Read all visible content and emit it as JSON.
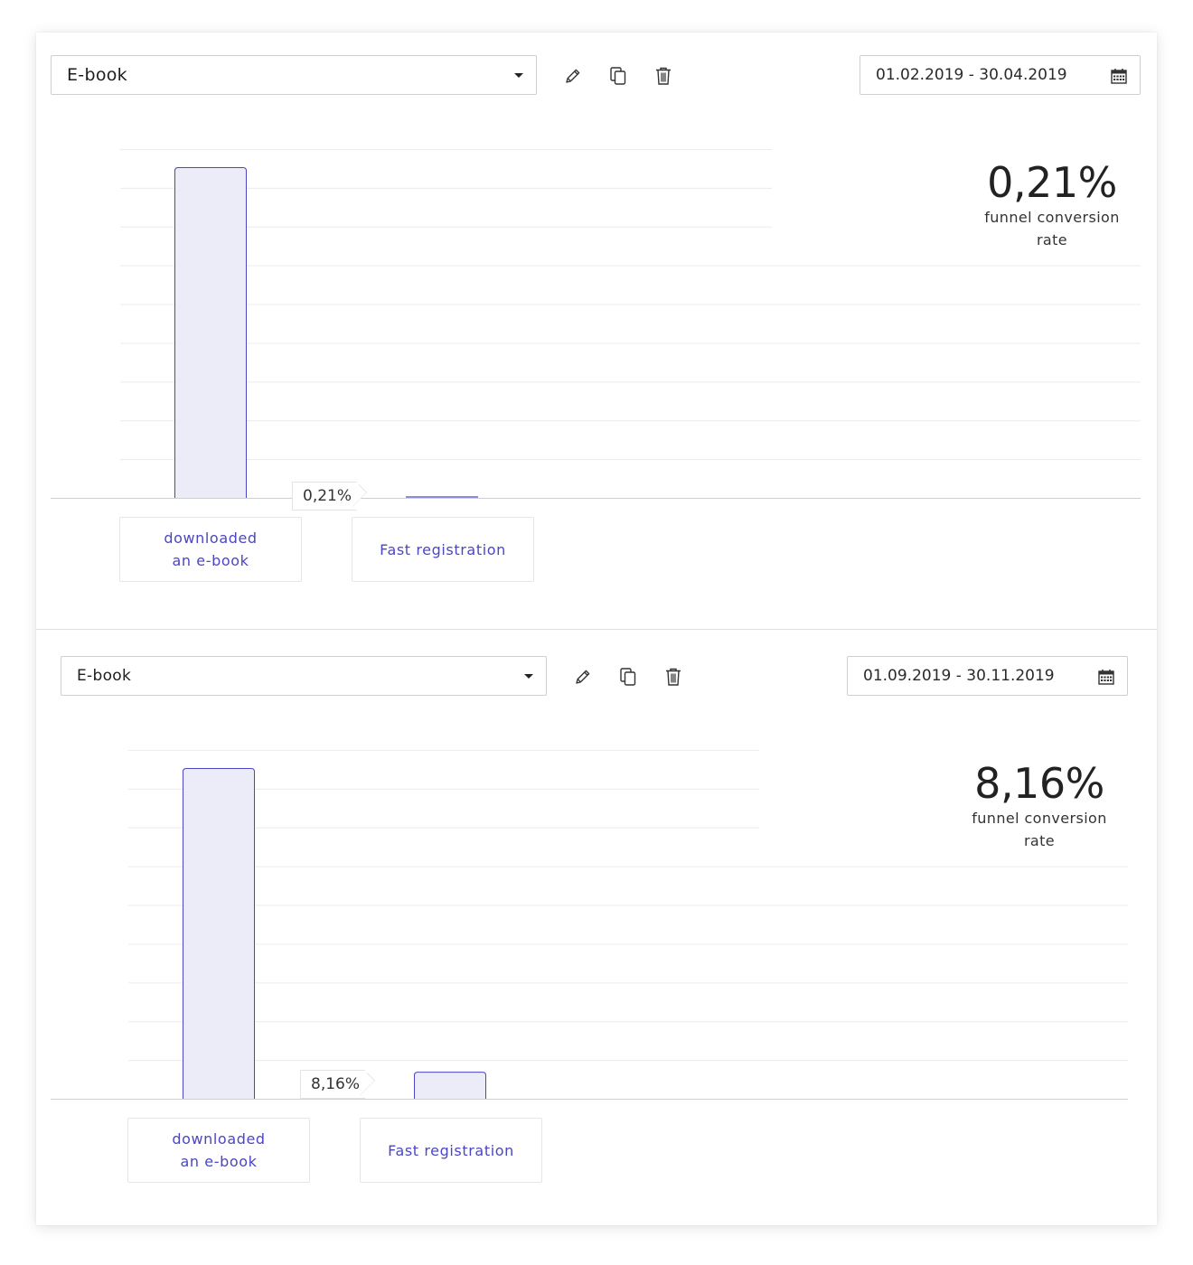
{
  "panels": [
    {
      "funnel_select": {
        "value": "E-book"
      },
      "date_range": "01.02.2019 - 30.04.2019",
      "kpi": {
        "value": "0,21%",
        "caption": "funnel conversion rate"
      },
      "step_conversion": "0,21%",
      "stages": [
        {
          "label": "downloaded\nan e-book",
          "value": 1.0
        },
        {
          "label": "Fast registration",
          "value": 0.0021
        }
      ]
    },
    {
      "funnel_select": {
        "value": "E-book"
      },
      "date_range": "01.09.2019 - 30.11.2019",
      "kpi": {
        "value": "8,16%",
        "caption": "funnel conversion rate"
      },
      "step_conversion": "8,16%",
      "stages": [
        {
          "label": "downloaded\nan e-book",
          "value": 1.0
        },
        {
          "label": "Fast registration",
          "value": 0.0816
        }
      ]
    }
  ],
  "toolbar_icons": [
    "pencil-icon",
    "copy-icon",
    "trash-icon"
  ],
  "colors": {
    "bar_fill": "#ececf9",
    "bar_stroke": "#4b46c4",
    "label_text": "#4b46c4",
    "grid": "#ececec"
  },
  "chart_data": [
    {
      "type": "bar",
      "categories": [
        "downloaded an e-book",
        "Fast registration"
      ],
      "values": [
        1.0,
        0.0021
      ],
      "ylim": [
        0,
        1.06
      ],
      "grid": true
    },
    {
      "type": "bar",
      "categories": [
        "downloaded an e-book",
        "Fast registration"
      ],
      "values": [
        1.0,
        0.0816
      ],
      "ylim": [
        0,
        1.06
      ],
      "grid": true
    }
  ]
}
